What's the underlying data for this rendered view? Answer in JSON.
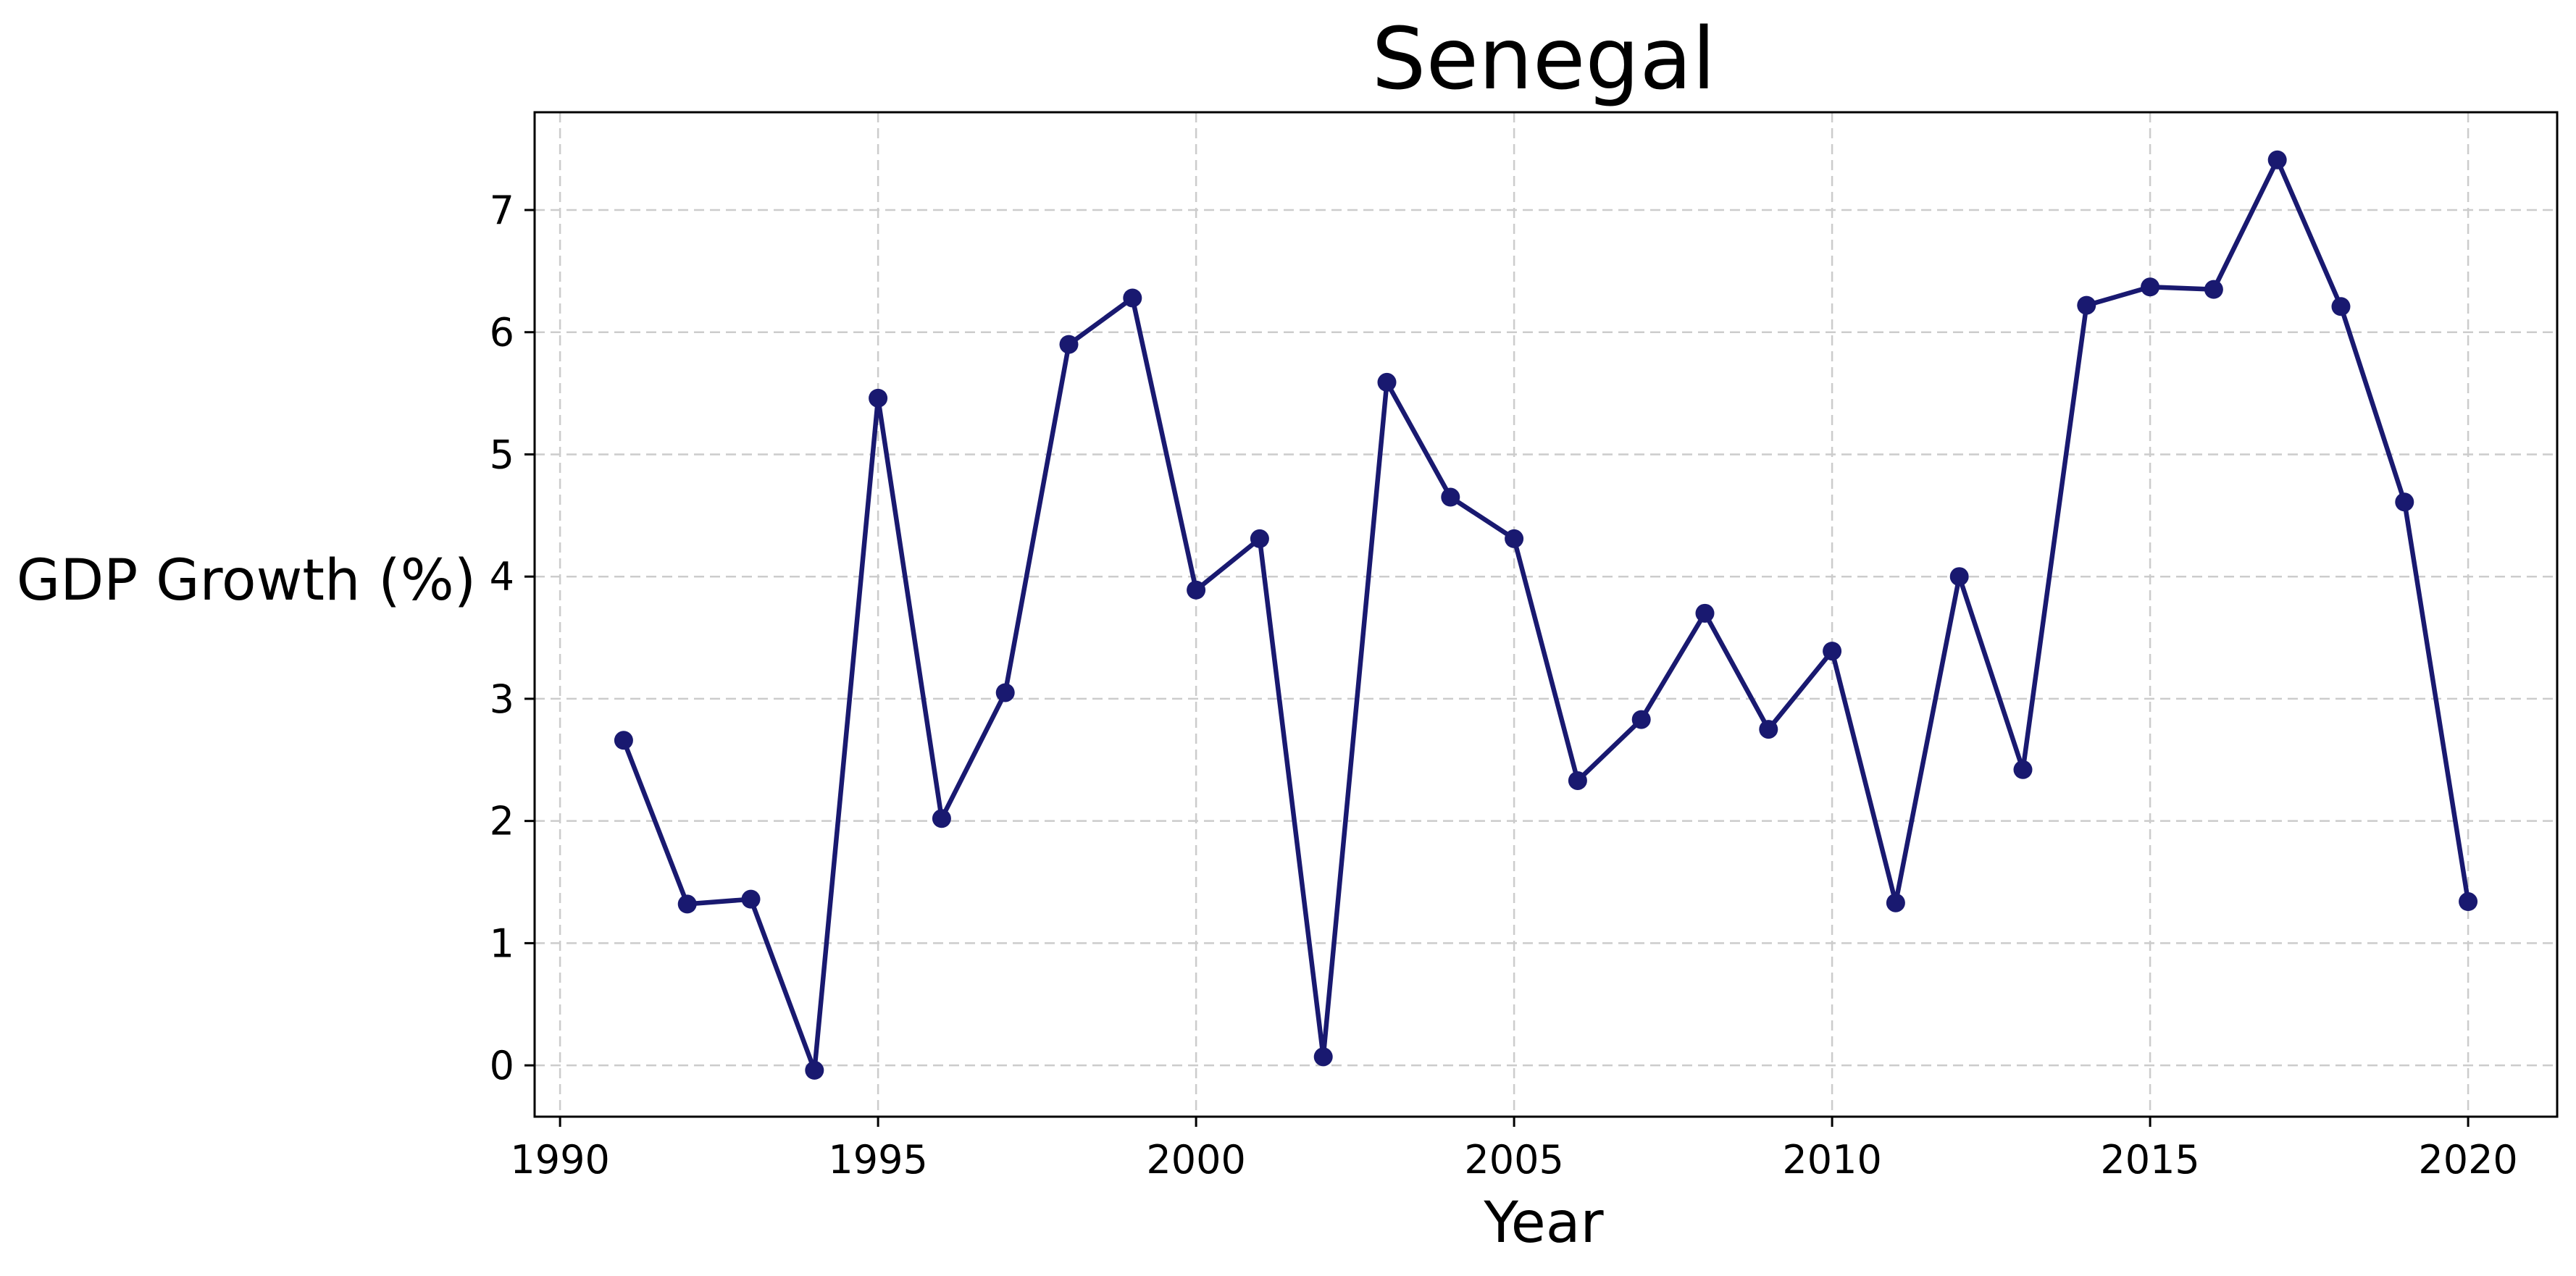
{
  "chart_data": {
    "type": "line",
    "title": "Senegal",
    "xlabel": "Year",
    "ylabel": "GDP Growth (%)",
    "xlim": [
      1989.6,
      2021.4
    ],
    "ylim": [
      -0.42,
      7.8
    ],
    "xticks": [
      1990,
      1995,
      2000,
      2005,
      2010,
      2015,
      2020
    ],
    "yticks": [
      0,
      1,
      2,
      3,
      4,
      5,
      6,
      7
    ],
    "grid": true,
    "line_color": "#191970",
    "series": [
      {
        "x": [
          1991,
          1992,
          1993,
          1994,
          1995,
          1996,
          1997,
          1998,
          1999,
          2000,
          2001,
          2002,
          2003,
          2004,
          2005,
          2006,
          2007,
          2008,
          2009,
          2010,
          2011,
          2012,
          2013,
          2014,
          2015,
          2016,
          2017,
          2018,
          2019,
          2020
        ],
        "values": [
          2.66,
          1.32,
          1.36,
          -0.04,
          5.46,
          2.02,
          3.05,
          5.9,
          6.28,
          3.89,
          4.31,
          0.07,
          5.59,
          4.65,
          4.31,
          2.33,
          2.83,
          3.7,
          2.75,
          3.39,
          1.33,
          4.0,
          2.42,
          6.22,
          6.37,
          6.35,
          7.41,
          6.21,
          4.61,
          1.34
        ]
      }
    ]
  }
}
